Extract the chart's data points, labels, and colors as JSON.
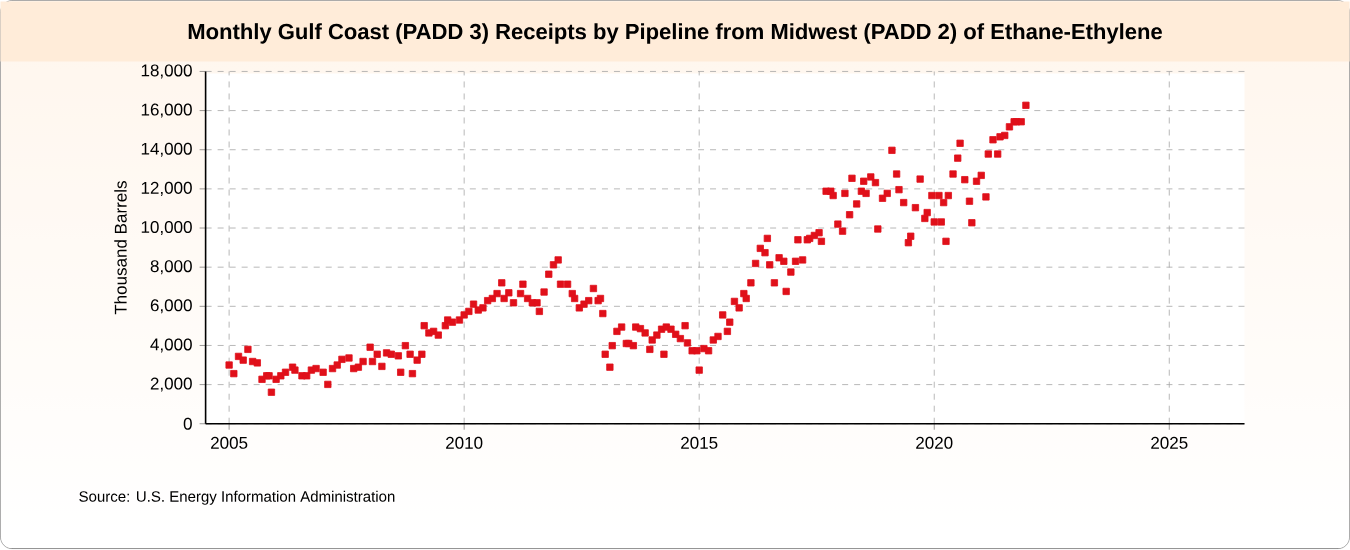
{
  "chart_data": {
    "type": "scatter",
    "title": "Monthly Gulf Coast (PADD 3) Receipts by Pipeline from Midwest (PADD 2) of Ethane-Ethylene",
    "ylabel": "Thousand Barrels",
    "annotations": [
      "Source: U.S. Energy Information Administration"
    ],
    "color": "#e0101a",
    "marker": "square",
    "grid": true,
    "xlim": [
      2004.5,
      2026.6
    ],
    "ylim": [
      0,
      18000
    ],
    "xticks": [
      2005,
      2010,
      2015,
      2020,
      2025
    ],
    "yticks": [
      0,
      {
        "value": 2000,
        "label": "2,000"
      },
      {
        "value": 4000,
        "label": "4,000"
      },
      {
        "value": 6000,
        "label": "6,000"
      },
      {
        "value": 8000,
        "label": "8,000"
      },
      {
        "value": 10000,
        "label": "10,000"
      },
      {
        "value": 12000,
        "label": "12,000"
      },
      {
        "value": 14000,
        "label": "14,000"
      },
      {
        "value": 16000,
        "label": "16,000"
      },
      {
        "value": 18000,
        "label": "18,000"
      }
    ],
    "x": [
      2005.0,
      2005.1,
      2005.2,
      2005.3,
      2005.4,
      2005.5,
      2005.6,
      2005.7,
      2005.8,
      2005.85,
      2005.9,
      2006.0,
      2006.1,
      2006.2,
      2006.35,
      2006.4,
      2006.55,
      2006.65,
      2006.75,
      2006.85,
      2007.0,
      2007.1,
      2007.2,
      2007.3,
      2007.4,
      2007.55,
      2007.65,
      2007.75,
      2007.85,
      2008.0,
      2008.05,
      2008.15,
      2008.25,
      2008.35,
      2008.45,
      2008.6,
      2008.65,
      2008.75,
      2008.85,
      2008.9,
      2009.0,
      2009.1,
      2009.15,
      2009.25,
      2009.35,
      2009.45,
      2009.6,
      2009.65,
      2009.75,
      2009.9,
      2010.0,
      2010.1,
      2010.2,
      2010.3,
      2010.4,
      2010.5,
      2010.6,
      2010.7,
      2010.8,
      2010.85,
      2010.95,
      2011.05,
      2011.2,
      2011.25,
      2011.35,
      2011.45,
      2011.55,
      2011.6,
      2011.7,
      2011.8,
      2011.9,
      2012.0,
      2012.05,
      2012.2,
      2012.3,
      2012.35,
      2012.45,
      2012.55,
      2012.65,
      2012.75,
      2012.85,
      2012.9,
      2012.95,
      2013.0,
      2013.1,
      2013.15,
      2013.25,
      2013.35,
      2013.45,
      2013.5,
      2013.6,
      2013.65,
      2013.75,
      2013.85,
      2013.95,
      2014.0,
      2014.1,
      2014.2,
      2014.25,
      2014.3,
      2014.4,
      2014.5,
      2014.6,
      2014.7,
      2014.75,
      2014.85,
      2014.95,
      2015.0,
      2015.1,
      2015.2,
      2015.3,
      2015.4,
      2015.5,
      2015.6,
      2015.65,
      2015.75,
      2015.85,
      2015.95,
      2016.0,
      2016.1,
      2016.2,
      2016.3,
      2016.4,
      2016.45,
      2016.5,
      2016.6,
      2016.7,
      2016.8,
      2016.85,
      2016.95,
      2017.05,
      2017.1,
      2017.2,
      2017.3,
      2017.35,
      2017.45,
      2017.55,
      2017.6,
      2017.7,
      2017.8,
      2017.85,
      2017.95,
      2018.05,
      2018.1,
      2018.2,
      2018.25,
      2018.35,
      2018.45,
      2018.5,
      2018.55,
      2018.65,
      2018.75,
      2018.8,
      2018.9,
      2019.0,
      2019.1,
      2019.2,
      2019.25,
      2019.35,
      2019.45,
      2019.5,
      2019.6,
      2019.7,
      2019.8,
      2019.85,
      2019.95,
      2020.0,
      2020.1,
      2020.15,
      2020.2,
      2020.25,
      2020.3,
      2020.4,
      2020.5,
      2020.55,
      2020.65,
      2020.75,
      2020.8,
      2020.9,
      2021.0,
      2021.1,
      2021.15,
      2021.25,
      2021.35,
      2021.4,
      2021.5,
      2021.6,
      2021.7,
      2021.75,
      2021.85,
      2021.95
    ],
    "values": [
      3000,
      2560,
      3440,
      3250,
      3800,
      3180,
      3110,
      2270,
      2450,
      2450,
      1610,
      2270,
      2450,
      2630,
      2890,
      2740,
      2450,
      2450,
      2740,
      2820,
      2630,
      2010,
      2820,
      3000,
      3290,
      3360,
      2820,
      2890,
      3180,
      3910,
      3180,
      3550,
      2930,
      3620,
      3550,
      3470,
      2630,
      3990,
      3550,
      2560,
      3250,
      3550,
      5010,
      4640,
      4720,
      4530,
      5010,
      5300,
      5190,
      5300,
      5560,
      5740,
      6110,
      5810,
      5920,
      6290,
      6400,
      6650,
      7200,
      6400,
      6690,
      6180,
      6650,
      7130,
      6400,
      6180,
      6180,
      5740,
      6730,
      7640,
      8120,
      8370,
      7130,
      7130,
      6650,
      6400,
      5920,
      6110,
      6290,
      6910,
      6290,
      6400,
      5630,
      3550,
      2890,
      3990,
      4720,
      4940,
      4100,
      4100,
      3990,
      4940,
      4860,
      4640,
      3800,
      4280,
      4530,
      4830,
      3550,
      4940,
      4830,
      4570,
      4350,
      5010,
      4130,
      3730,
      3730,
      2740,
      3840,
      3730,
      4280,
      4460,
      5560,
      4720,
      5190,
      6250,
      5920,
      6650,
      6400,
      7200,
      8190,
      8960,
      8740,
      9470,
      8120,
      7200,
      8480,
      8300,
      6760,
      7750,
      8300,
      9400,
      8370,
      9400,
      9470,
      9620,
      9760,
      9320,
      11880,
      11880,
      11660,
      10200,
      9840,
      11770,
      10680,
      12540,
      11230,
      11880,
      12390,
      11770,
      12610,
      12320,
      9950,
      11520,
      11770,
      13970,
      12760,
      11960,
      11300,
      9250,
      9580,
      11040,
      12500,
      10490,
      10790,
      11660,
      10310,
      11660,
      10310,
      11300,
      9320,
      11660,
      12760,
      13570,
      14330,
      12470,
      11370,
      10270,
      12390,
      12690,
      11590,
      13780,
      14510,
      13780,
      14660,
      14730,
      15170,
      15430,
      15430,
      15430,
      16270
    ]
  }
}
